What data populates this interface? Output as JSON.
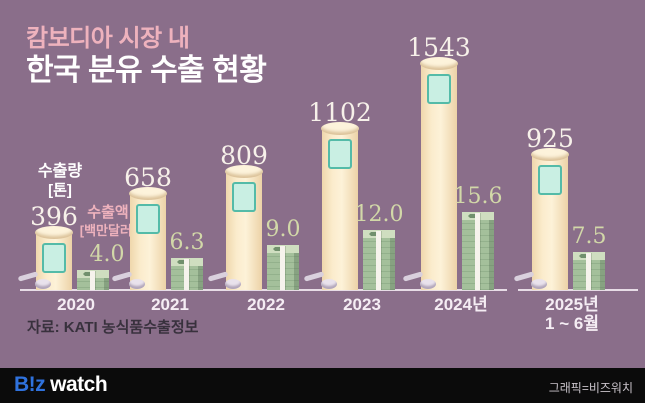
{
  "title": {
    "line1": "캄보디아 시장 내",
    "line2": "한국 분유 수출 현황"
  },
  "legend": {
    "volume_label": "수출량",
    "volume_unit": "[톤]",
    "value_label": "수출액",
    "value_unit": "[백만달러]"
  },
  "source": "자료: KATI 농식품수출정보",
  "footer": {
    "logo_primary": "B!z",
    "logo_secondary": "watch",
    "credit": "그래픽=비즈워치"
  },
  "colors": {
    "background": "#8a6e8a",
    "title_accent": "#eeb2bd",
    "title_main": "#ffffff",
    "volume_number_text": "#f7f1ea",
    "value_number_text": "#d2d8a8",
    "can_body": "#fbeccd",
    "can_label_fill": "#c9efe3",
    "can_label_border": "#54bba8",
    "money_green": "#a4c09b",
    "money_band": "#f6f3ec",
    "baseline": "#e7dce6",
    "source_text": "#38313d",
    "footer_bg": "#0b0b0b",
    "logo_blue": "#2f72dd",
    "credit_text": "#c9c3ca"
  },
  "chart_data": {
    "type": "bar",
    "title": "캄보디아 시장 내 한국 분유 수출 현황",
    "categories": [
      "2020",
      "2021",
      "2022",
      "2023",
      "2024년",
      "2025년"
    ],
    "category_note": {
      "category_index": 5,
      "text": "1 ~ 6월"
    },
    "series": [
      {
        "name": "수출량",
        "unit": "톤",
        "bar_style": "milk-can",
        "values": [
          396,
          658,
          809,
          1102,
          1543,
          925
        ],
        "display": [
          "396",
          "658",
          "809",
          "1102",
          "1543",
          "925"
        ]
      },
      {
        "name": "수출액",
        "unit": "백만달러",
        "bar_style": "money-stack",
        "values": [
          4.0,
          6.3,
          9.0,
          12.0,
          15.6,
          7.5
        ],
        "display": [
          "4.0",
          "6.3",
          "9.0",
          "12.0",
          "15.6",
          "7.5"
        ]
      }
    ],
    "grid": false,
    "legend_position": "inline-left",
    "axis_break_between": [
      "2024년",
      "2025년"
    ]
  }
}
